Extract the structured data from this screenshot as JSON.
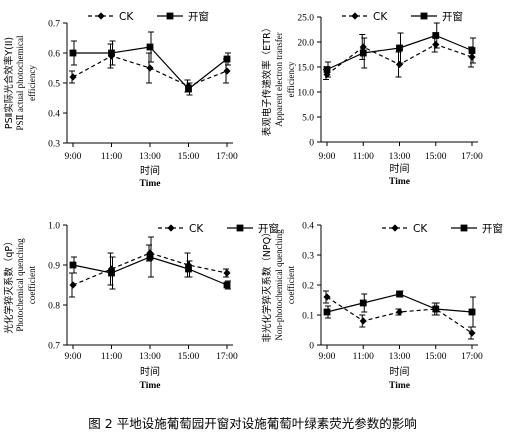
{
  "caption": "图 2  平地设施葡萄园开窗对设施葡萄叶绿素荧光参数的影响",
  "colors": {
    "axis": "#000000",
    "ck_line": "#000000",
    "window_line": "#000000"
  },
  "chart_data": [
    {
      "type": "line",
      "panel": "top-left",
      "ylabel_cn": "PSⅡ实际光合效率Y(II)",
      "ylabel_en": [
        "PSⅡ actual photochemical",
        "efficiency"
      ],
      "xlabel_cn": "时间",
      "xlabel_en": "Time",
      "categories": [
        "9:00",
        "11:00",
        "13:00",
        "15:00",
        "17:00"
      ],
      "ylim": [
        0.3,
        0.7
      ],
      "yticks": [
        "0.3",
        "0.4",
        "0.5",
        "0.6",
        "0.7"
      ],
      "legend_position": "top-left",
      "series": [
        {
          "name": "CK",
          "marker": "diamond",
          "dash": true,
          "values": [
            0.52,
            0.59,
            0.55,
            0.49,
            0.54
          ],
          "errors": [
            0.02,
            0.04,
            0.05,
            0.02,
            0.04
          ]
        },
        {
          "name": "开窗",
          "marker": "square",
          "dash": false,
          "values": [
            0.6,
            0.6,
            0.62,
            0.48,
            0.58
          ],
          "errors": [
            0.04,
            0.04,
            0.05,
            0.02,
            0.02
          ]
        }
      ]
    },
    {
      "type": "line",
      "panel": "top-right",
      "ylabel_cn": "表观电子传递效率（ETR）",
      "ylabel_en": [
        "Apparent electron transfer",
        "efficiency"
      ],
      "xlabel_cn": "时间",
      "xlabel_en": "Time",
      "categories": [
        "9:00",
        "11:00",
        "13:00",
        "15:00",
        "17:00"
      ],
      "ylim": [
        0,
        25
      ],
      "yticks": [
        "0",
        "5.0",
        "10.0",
        "15.0",
        "20.0",
        "25.0"
      ],
      "legend_position": "top-left",
      "series": [
        {
          "name": "CK",
          "marker": "diamond",
          "dash": true,
          "values": [
            13.5,
            19.0,
            15.5,
            19.5,
            17.0
          ],
          "errors": [
            1.0,
            2.5,
            2.5,
            1.5,
            2.0
          ]
        },
        {
          "name": "开窗",
          "marker": "square",
          "dash": false,
          "values": [
            14.5,
            17.8,
            18.8,
            21.3,
            18.3
          ],
          "errors": [
            1.5,
            3.0,
            3.0,
            2.5,
            2.5
          ]
        }
      ]
    },
    {
      "type": "line",
      "panel": "bottom-left",
      "ylabel_cn": "光化学猝灭系数（qP）",
      "ylabel_en": [
        "Photochemical quenching",
        "coefficient"
      ],
      "xlabel_cn": "时间",
      "xlabel_en": "Time",
      "categories": [
        "9:00",
        "11:00",
        "13:00",
        "15:00",
        "17:00"
      ],
      "ylim": [
        0.7,
        1.0
      ],
      "yticks": [
        "0.7",
        "0.8",
        "0.9",
        "1.0"
      ],
      "legend_position": "top-right",
      "series": [
        {
          "name": "CK",
          "marker": "diamond",
          "dash": true,
          "values": [
            0.85,
            0.89,
            0.93,
            0.9,
            0.88
          ],
          "errors": [
            0.03,
            0.04,
            0.02,
            0.03,
            0.01
          ]
        },
        {
          "name": "开窗",
          "marker": "square",
          "dash": false,
          "values": [
            0.9,
            0.88,
            0.92,
            0.89,
            0.85
          ],
          "errors": [
            0.02,
            0.04,
            0.05,
            0.02,
            0.01
          ]
        }
      ]
    },
    {
      "type": "line",
      "panel": "bottom-right",
      "ylabel_cn": "非光化学猝灭系数（NPQ）",
      "ylabel_en": [
        "Non-photochemical quenching",
        "coefficient"
      ],
      "xlabel_cn": "时间",
      "xlabel_en": "Time",
      "categories": [
        "9:00",
        "11:00",
        "13:00",
        "15:00",
        "17:00"
      ],
      "ylim": [
        0,
        0.4
      ],
      "yticks": [
        "0",
        "0.1",
        "0.2",
        "0.3",
        "0.4"
      ],
      "legend_position": "top-right",
      "series": [
        {
          "name": "CK",
          "marker": "diamond",
          "dash": true,
          "values": [
            0.16,
            0.08,
            0.11,
            0.12,
            0.04
          ],
          "errors": [
            0.02,
            0.02,
            0.01,
            0.02,
            0.02
          ]
        },
        {
          "name": "开窗",
          "marker": "square",
          "dash": false,
          "values": [
            0.11,
            0.14,
            0.17,
            0.12,
            0.11
          ],
          "errors": [
            0.02,
            0.03,
            0.01,
            0.02,
            0.05
          ]
        }
      ]
    }
  ]
}
